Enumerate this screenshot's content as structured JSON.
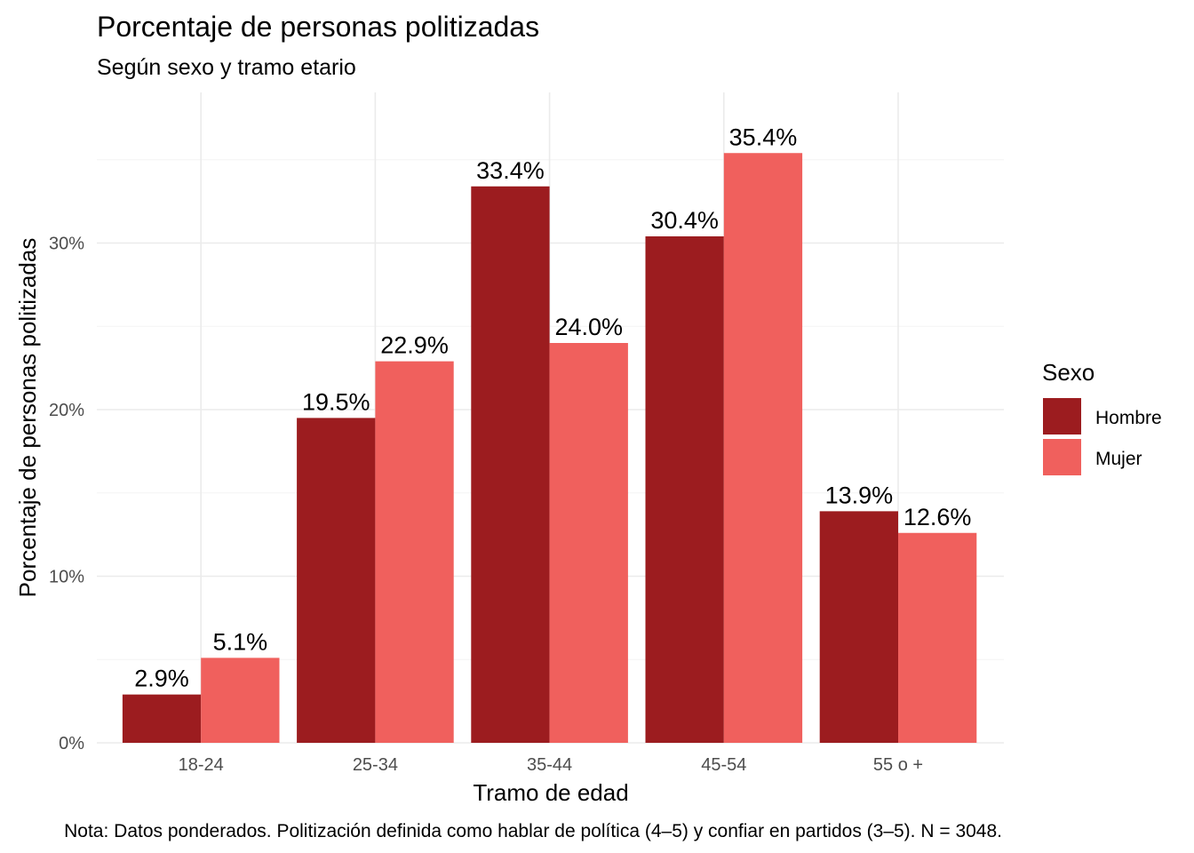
{
  "chart_data": {
    "type": "bar",
    "title": "Porcentaje de personas politizadas",
    "subtitle": "Según sexo y tramo etario",
    "xlabel": "Tramo de edad",
    "ylabel": "Porcentaje de personas politizadas",
    "caption": "Nota: Datos ponderados. Politización definida como hablar de política (4–5) y confiar en partidos (3–5). N = 3048.",
    "categories": [
      "18-24",
      "25-34",
      "35-44",
      "45-54",
      "55 o +"
    ],
    "series": [
      {
        "name": "Hombre",
        "color": "#9c1c1f",
        "values": [
          2.9,
          19.5,
          33.4,
          30.4,
          13.9
        ],
        "labels": [
          "2.9%",
          "19.5%",
          "33.4%",
          "30.4%",
          "13.9%"
        ]
      },
      {
        "name": "Mujer",
        "color": "#f0605d",
        "values": [
          5.1,
          22.9,
          24.0,
          35.4,
          12.6
        ],
        "labels": [
          "5.1%",
          "22.9%",
          "24.0%",
          "35.4%",
          "12.6%"
        ]
      }
    ],
    "ylim": [
      0,
      39
    ],
    "yticks": [
      0,
      10,
      20,
      30
    ],
    "ytick_labels": [
      "0%",
      "10%",
      "20%",
      "30%"
    ],
    "legend": {
      "title": "Sexo",
      "position": "right"
    },
    "grid": true
  }
}
